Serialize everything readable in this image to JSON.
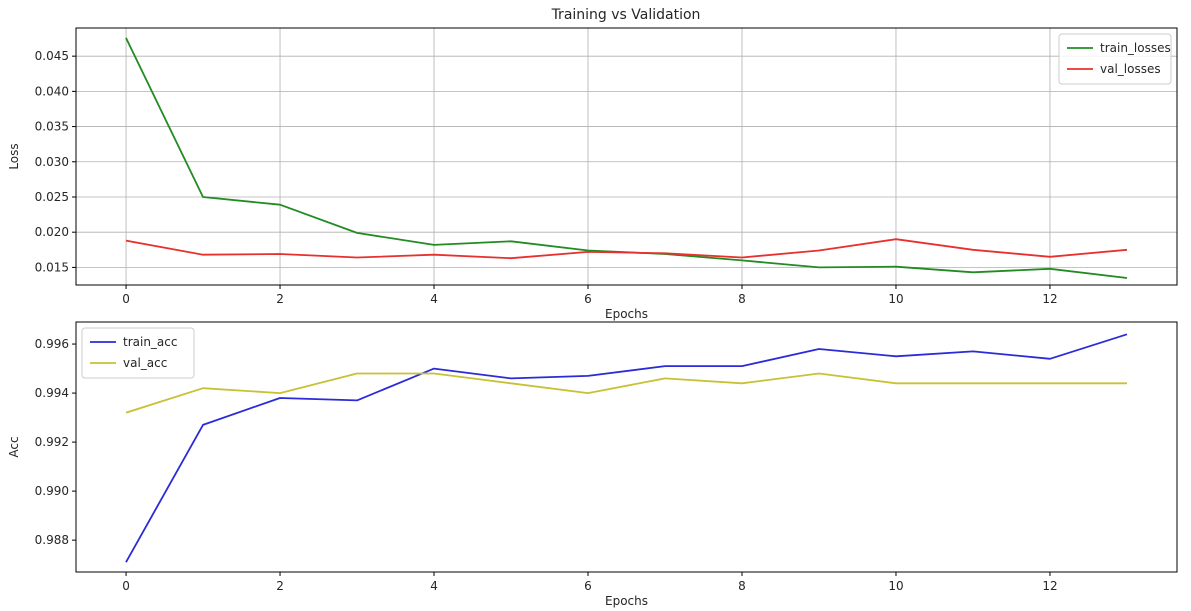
{
  "figure": {
    "title": "Training vs Validation"
  },
  "chart_data": [
    {
      "type": "line",
      "title": "Training vs Validation",
      "xlabel": "Epochs",
      "ylabel": "Loss",
      "x": [
        0,
        1,
        2,
        3,
        4,
        5,
        6,
        7,
        8,
        9,
        10,
        11,
        12,
        13
      ],
      "xlim": [
        -0.65,
        13.65
      ],
      "ylim": [
        0.0125,
        0.049
      ],
      "xticks": [
        0,
        2,
        4,
        6,
        8,
        10,
        12
      ],
      "yticks": [
        0.015,
        0.02,
        0.025,
        0.03,
        0.035,
        0.04,
        0.045
      ],
      "ytick_labels": [
        "0.015",
        "0.020",
        "0.025",
        "0.030",
        "0.035",
        "0.040",
        "0.045"
      ],
      "grid": true,
      "legend": "top-right",
      "series": [
        {
          "name": "train_losses",
          "color": "#228b22",
          "values": [
            0.0476,
            0.025,
            0.0239,
            0.0199,
            0.0182,
            0.0187,
            0.0174,
            0.0169,
            0.016,
            0.015,
            0.0151,
            0.0143,
            0.0148,
            0.0135
          ]
        },
        {
          "name": "val_losses",
          "color": "#e8302f",
          "values": [
            0.0188,
            0.0168,
            0.0169,
            0.0164,
            0.0168,
            0.0163,
            0.0172,
            0.017,
            0.0164,
            0.0174,
            0.019,
            0.0175,
            0.0165,
            0.0175
          ]
        }
      ]
    },
    {
      "type": "line",
      "title": "",
      "xlabel": "Epochs",
      "ylabel": "Acc",
      "x": [
        0,
        1,
        2,
        3,
        4,
        5,
        6,
        7,
        8,
        9,
        10,
        11,
        12,
        13
      ],
      "xlim": [
        -0.65,
        13.65
      ],
      "ylim": [
        0.9867,
        0.9969
      ],
      "xticks": [
        0,
        2,
        4,
        6,
        8,
        10,
        12
      ],
      "yticks": [
        0.988,
        0.99,
        0.992,
        0.994,
        0.996
      ],
      "ytick_labels": [
        "0.988",
        "0.990",
        "0.992",
        "0.994",
        "0.996"
      ],
      "grid": false,
      "legend": "top-left",
      "series": [
        {
          "name": "train_acc",
          "color": "#2b2bd9",
          "values": [
            0.9871,
            0.9927,
            0.9938,
            0.9937,
            0.995,
            0.9946,
            0.9947,
            0.9951,
            0.9951,
            0.9958,
            0.9955,
            0.9957,
            0.9954,
            0.9964
          ]
        },
        {
          "name": "val_acc",
          "color": "#c8c035",
          "values": [
            0.9932,
            0.9942,
            0.994,
            0.9948,
            0.9948,
            0.9944,
            0.994,
            0.9946,
            0.9944,
            0.9948,
            0.9944,
            0.9944,
            0.9944,
            0.9944
          ]
        }
      ]
    }
  ]
}
